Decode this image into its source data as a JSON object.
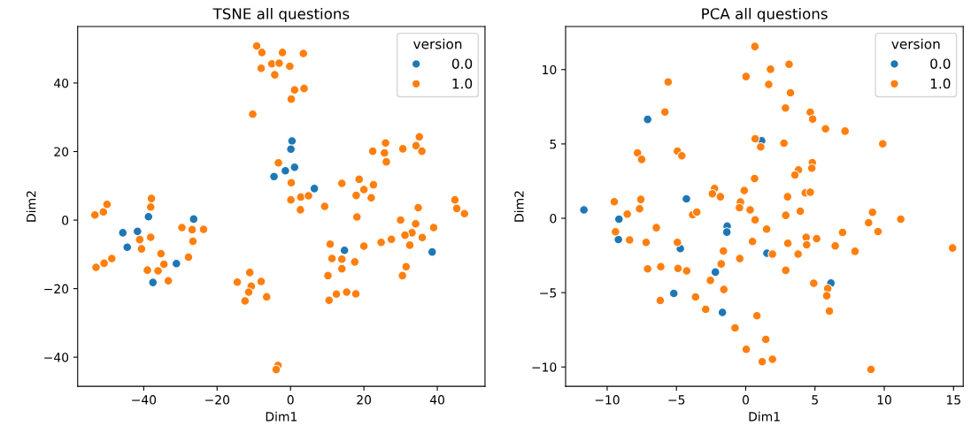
{
  "chart_data": [
    {
      "type": "scatter",
      "title": "TSNE all questions",
      "xlabel": "Dim1",
      "ylabel": "Dim2",
      "legend_title": "version",
      "legend": "top right",
      "marker": "circle",
      "grid": false,
      "xlim": [
        -58,
        53
      ],
      "ylim": [
        -48.5,
        56.5
      ],
      "xticks": [
        {
          "value": -40,
          "label": "−40"
        },
        {
          "value": -20,
          "label": "−20"
        },
        0,
        20,
        40
      ],
      "yticks": [
        {
          "value": -40,
          "label": "−40"
        },
        {
          "value": -20,
          "label": "−20"
        },
        0,
        20,
        40
      ],
      "series": [
        {
          "name": "0.0",
          "color": "#1f77b4",
          "x": [
            -45.7,
            -41.7,
            -44.5,
            -38.7,
            -26.4,
            -31.1,
            -37.5,
            -4.5,
            0.4,
            0.1,
            -1.4,
            1.1,
            6.5,
            14.7,
            38.6
          ],
          "values": [
            -3.7,
            -3.3,
            -7.9,
            1.0,
            0.3,
            -12.7,
            -18.2,
            12.7,
            23.1,
            20.7,
            14.4,
            15.4,
            9.2,
            -8.8,
            -9.3
          ]
        },
        {
          "name": "1.0",
          "color": "#ff7f0e",
          "x": [
            -9.2,
            -7.8,
            -8.0,
            -5.1,
            -3.1,
            -4.3,
            -2.2,
            -10.3,
            -3.3,
            -53.3,
            -51.0,
            -50.0,
            -37.9,
            -38.1,
            -38.1,
            -41.1,
            -40.6,
            -35.3,
            -34.5,
            -36.1,
            -39.0,
            -33.3,
            -53.0,
            -50.8,
            -48.7,
            -29.6,
            -26.8,
            -23.7,
            -26.6,
            -27.8,
            -14.5,
            -11.1,
            -8.0,
            -10.7,
            -11.4,
            -12.4,
            -6.5,
            -3.4,
            -3.9,
            3.5,
            -0.2,
            1.1,
            3.7,
            0.2,
            0.2,
            0.1,
            2.8,
            4.9,
            2.7,
            9.3,
            14.0,
            18.7,
            20.0,
            22.6,
            17.9,
            22.0,
            18.1,
            22.4,
            25.9,
            25.6,
            26.1,
            30.6,
            35.1,
            34.2,
            35.8,
            44.8,
            45.3,
            47.4,
            34.8,
            30.0,
            34.1,
            33.1,
            31.2,
            39.0,
            35.9,
            32.5,
            27.5,
            24.7,
            20.0,
            10.8,
            11.3,
            14.0,
            14.0,
            17.5,
            10.2,
            31.5,
            30.5,
            10.5,
            12.5,
            15.3,
            17.8
          ],
          "values": [
            50.8,
            48.9,
            44.3,
            45.6,
            45.8,
            42.4,
            48.9,
            30.9,
            16.7,
            1.5,
            2.4,
            4.6,
            6.3,
            3.8,
            -5.0,
            -5.7,
            -8.4,
            -9.8,
            -12.9,
            -14.8,
            -14.6,
            -17.7,
            -13.8,
            -12.6,
            -11.2,
            -2.2,
            -2.8,
            -2.7,
            -6.2,
            -10.8,
            -18.1,
            -15.3,
            -17.9,
            -19.3,
            -21.0,
            -23.6,
            -22.4,
            -42.4,
            -43.6,
            48.6,
            44.9,
            38.0,
            38.4,
            35.3,
            10.9,
            5.9,
            6.7,
            7.1,
            3.0,
            4.0,
            10.7,
            11.9,
            8.9,
            10.3,
            7.2,
            6.5,
            0.9,
            20.1,
            22.5,
            19.6,
            17.0,
            20.8,
            24.3,
            21.7,
            20.1,
            5.9,
            3.4,
            1.9,
            3.6,
            0.0,
            -1.1,
            -3.7,
            -4.4,
            -2.2,
            -5.1,
            -7.3,
            -5.6,
            -6.5,
            -7.6,
            -7.0,
            -11.2,
            -11.4,
            -14.2,
            -12.2,
            -16.2,
            -13.6,
            -16.2,
            -23.4,
            -21.6,
            -21.0,
            -21.5
          ]
        }
      ]
    },
    {
      "type": "scatter",
      "title": "PCA all questions",
      "xlabel": "Dim1",
      "ylabel": "Dim2",
      "legend_title": "version",
      "legend": "top right",
      "marker": "circle",
      "grid": false,
      "xlim": [
        -13,
        15.7
      ],
      "ylim": [
        -11.3,
        12.9
      ],
      "xticks": [
        {
          "value": -10,
          "label": "−10"
        },
        {
          "value": -5,
          "label": "−5"
        },
        0,
        5,
        10,
        15
      ],
      "yticks": [
        {
          "value": -10,
          "label": "−10"
        },
        {
          "value": -5,
          "label": "−5"
        },
        0,
        5,
        10
      ],
      "series": [
        {
          "name": "0.0",
          "color": "#1f77b4",
          "x": [
            -11.68,
            -7.08,
            -9.15,
            -9.19,
            -4.28,
            -4.72,
            -5.19,
            -2.19,
            -1.68,
            -1.34,
            -1.36,
            1.15,
            1.53,
            6.15
          ],
          "values": [
            0.56,
            6.65,
            -0.06,
            -1.43,
            1.31,
            -2.04,
            -5.05,
            -3.62,
            -6.33,
            -0.53,
            -0.93,
            5.21,
            -2.35,
            -4.36
          ]
        },
        {
          "name": "1.0",
          "color": "#ff7f0e",
          "x": [
            -5.6,
            -5.83,
            -7.81,
            -7.51,
            -4.93,
            -4.61,
            -9.49,
            -7.57,
            -7.66,
            -8.55,
            -9.4,
            -8.38,
            -6.45,
            -7.19,
            -4.93,
            -7.08,
            -6.13,
            -4.89,
            -4.26,
            -3.83,
            -3.53,
            -2.25,
            -2.41,
            -1.83,
            -1.61,
            -1.77,
            -2.55,
            -1.58,
            -3.62,
            -6.17,
            -2.89,
            -0.77,
            0.66,
            3.13,
            1.79,
            0.02,
            1.66,
            3.23,
            2.87,
            4.66,
            4.83,
            5.76,
            7.17,
            9.89,
            0.68,
            1.08,
            2.76,
            4.81,
            4.77,
            3.81,
            3.55,
            0.64,
            -0.11,
            -0.38,
            -0.45,
            0.32,
            0.68,
            3.02,
            4.3,
            4.66,
            3.94,
            2.89,
            1.51,
            0.49,
            -0.43,
            1.93,
            3.04,
            4.36,
            4.4,
            5.12,
            3.78,
            2.89,
            6.46,
            6.99,
            7.89,
            8.87,
            9.15,
            9.55,
            11.19,
            14.93,
            4.91,
            5.92,
            5.85,
            6.04,
            0.81,
            1.45,
            0.04,
            1.19,
            1.93,
            9.04
          ],
          "values": [
            9.17,
            7.15,
            4.4,
            3.96,
            4.52,
            4.2,
            1.11,
            1.27,
            0.64,
            0.28,
            -0.91,
            -1.46,
            -0.63,
            -1.62,
            -1.62,
            -3.4,
            -3.25,
            -3.37,
            -3.54,
            0.24,
            0.42,
            2.0,
            1.65,
            1.45,
            -2.2,
            -3.07,
            -4.18,
            -4.79,
            -5.29,
            -5.53,
            -6.12,
            -7.37,
            11.55,
            10.36,
            10.02,
            9.53,
            9.0,
            8.44,
            7.41,
            7.13,
            6.67,
            6.02,
            5.86,
            5.01,
            5.35,
            4.8,
            5.05,
            3.74,
            3.37,
            3.25,
            2.91,
            2.67,
            1.87,
            1.09,
            0.71,
            0.56,
            -0.1,
            1.45,
            1.71,
            1.75,
            0.48,
            0.2,
            -0.73,
            -1.56,
            -2.71,
            -2.41,
            -1.68,
            -1.28,
            -1.78,
            -1.37,
            -2.41,
            -3.5,
            -1.86,
            -0.95,
            -2.22,
            -0.3,
            0.4,
            -0.89,
            -0.06,
            -2.0,
            -4.37,
            -4.73,
            -5.21,
            -6.24,
            -6.55,
            -8.14,
            -8.81,
            -9.64,
            -9.48,
            -10.16
          ]
        }
      ]
    }
  ]
}
